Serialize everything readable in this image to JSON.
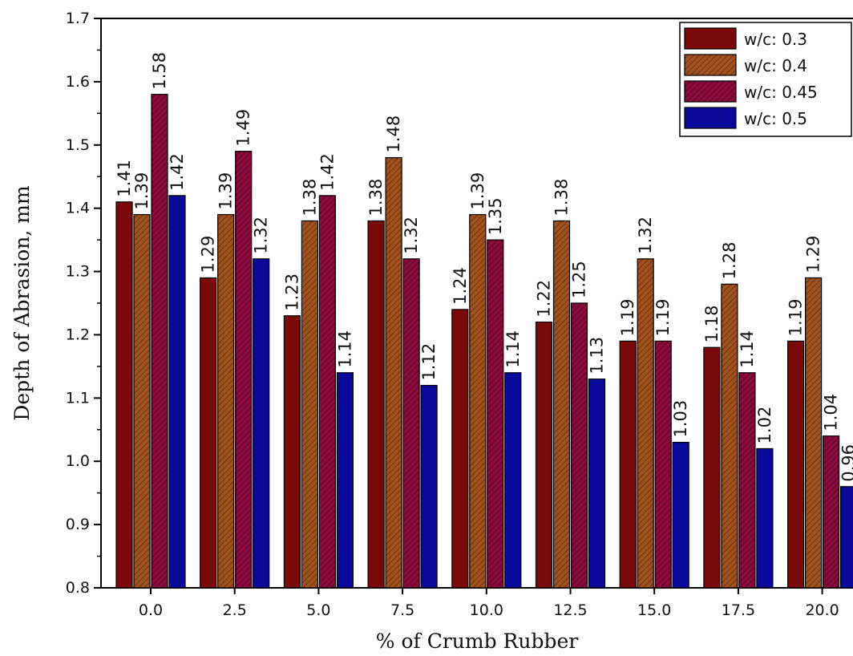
{
  "chart_data": {
    "type": "bar",
    "title": "",
    "xlabel": "% of Crumb Rubber",
    "ylabel": "Depth of Abrasion, mm",
    "ylim": [
      0.8,
      1.7
    ],
    "yticks": [
      "0.8",
      "0.9",
      "1.0",
      "1.1",
      "1.2",
      "1.3",
      "1.4",
      "1.5",
      "1.6",
      "1.7"
    ],
    "categories": [
      "0.0",
      "2.5",
      "5.0",
      "7.5",
      "10.0",
      "12.5",
      "15.0",
      "17.5",
      "20.0"
    ],
    "series": [
      {
        "name": "w/c: 0.3",
        "color": "#7a0a0a",
        "pattern": "solid",
        "values": [
          1.41,
          1.29,
          1.23,
          1.38,
          1.24,
          1.22,
          1.19,
          1.18,
          1.19
        ],
        "labels": [
          "1.41",
          "1.29",
          "1.23",
          "1.38",
          "1.24",
          "1.22",
          "1.19",
          "1.18",
          "1.19"
        ]
      },
      {
        "name": "w/c: 0.4",
        "color": "#a0521e",
        "pattern": "hatched",
        "values": [
          1.39,
          1.39,
          1.38,
          1.48,
          1.39,
          1.38,
          1.32,
          1.28,
          1.29
        ],
        "labels": [
          "1.39",
          "1.39",
          "1.38",
          "1.48",
          "1.39",
          "1.38",
          "1.32",
          "1.28",
          "1.29"
        ]
      },
      {
        "name": "w/c: 0.45",
        "color": "#8a0a3c",
        "pattern": "hatched",
        "values": [
          1.58,
          1.49,
          1.42,
          1.32,
          1.35,
          1.25,
          1.19,
          1.14,
          1.04
        ],
        "labels": [
          "1.58",
          "1.49",
          "1.42",
          "1.32",
          "1.35",
          "1.25",
          "1.19",
          "1.14",
          "1.04"
        ]
      },
      {
        "name": "w/c: 0.5",
        "color": "#0a0a9a",
        "pattern": "solid",
        "values": [
          1.42,
          1.32,
          1.14,
          1.12,
          1.14,
          1.13,
          1.03,
          1.02,
          0.96
        ],
        "labels": [
          "1.42",
          "1.32",
          "1.14",
          "1.12",
          "1.14",
          "1.13",
          "1.03",
          "1.02",
          "0.96"
        ]
      }
    ],
    "legend_position": "top-right",
    "grid": false
  }
}
